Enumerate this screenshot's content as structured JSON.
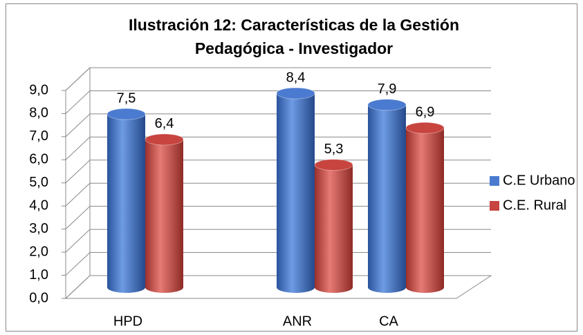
{
  "chart_data": {
    "type": "bar3d",
    "title": [
      "Ilustración 12: Características de la Gestión",
      "Pedagógica - Investigador"
    ],
    "categories": [
      "HPD",
      "ANR",
      "CA"
    ],
    "series": [
      {
        "name": "C.E Urbano",
        "color": "#4a7bd0",
        "values": [
          7.5,
          8.4,
          7.9
        ],
        "value_labels": [
          "7,5",
          "8,4",
          "7,9"
        ]
      },
      {
        "name": "C.E. Rural",
        "color": "#c8443f",
        "values": [
          6.4,
          5.3,
          6.9
        ],
        "value_labels": [
          "6,4",
          "5,3",
          "6,9"
        ]
      }
    ],
    "ylim": [
      0,
      9
    ],
    "yticks": [
      {
        "value": 0,
        "label": "0,0"
      },
      {
        "value": 1,
        "label": "1,0"
      },
      {
        "value": 2,
        "label": "2,0"
      },
      {
        "value": 3,
        "label": "3,0"
      },
      {
        "value": 4,
        "label": "4,0"
      },
      {
        "value": 5,
        "label": "5,0"
      },
      {
        "value": 6,
        "label": "6,0"
      },
      {
        "value": 7,
        "label": "7,0"
      },
      {
        "value": 8,
        "label": "8,0"
      },
      {
        "value": 9,
        "label": "9,0"
      }
    ],
    "grid": true,
    "legend": "right"
  }
}
